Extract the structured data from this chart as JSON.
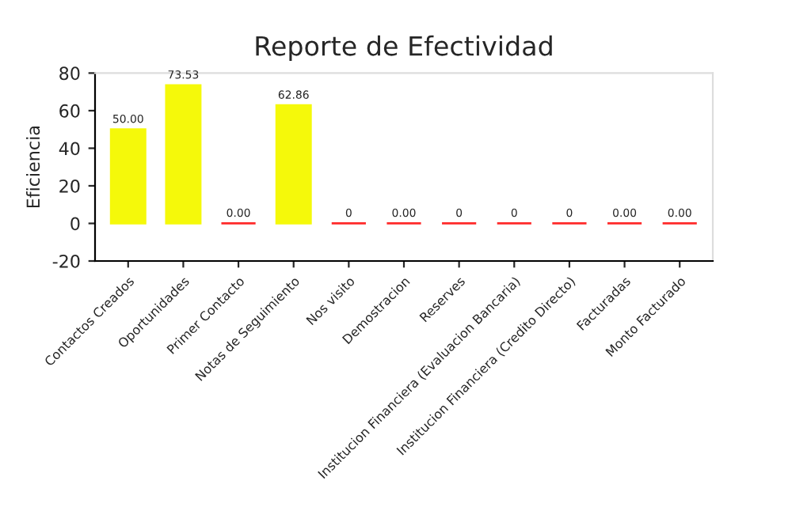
{
  "chart_data": {
    "type": "bar",
    "title": "Reporte de Efectividad",
    "ylabel": "Eficiencia",
    "categories": [
      "Contactos Creados",
      "Oportunidades",
      "Primer Contacto",
      "Notas de Seguimiento",
      "Nos visito",
      "Demostracion",
      "Reserves",
      "Institucion Financiera (Evaluacion Bancaria)",
      "Institucion Financiera (Credito Directo)",
      "Facturadas",
      "Monto Facturado"
    ],
    "values": [
      50.0,
      73.53,
      0,
      62.86,
      0,
      0,
      0,
      0,
      0,
      0,
      0
    ],
    "value_labels": [
      "50.00",
      "73.53",
      "0.00",
      "62.86",
      "0",
      "0.00",
      "0",
      "0",
      "0",
      "0.00",
      "0.00"
    ],
    "colors": [
      "#f5f90a",
      "#f5f90a",
      "#ff2a2a",
      "#f5f90a",
      "#ff2a2a",
      "#ff2a2a",
      "#ff2a2a",
      "#ff2a2a",
      "#ff2a2a",
      "#ff2a2a",
      "#ff2a2a"
    ],
    "ylim": [
      -20,
      80
    ],
    "yticks": [
      -20,
      0,
      20,
      40,
      60,
      80
    ],
    "grid": false,
    "legend": false
  }
}
